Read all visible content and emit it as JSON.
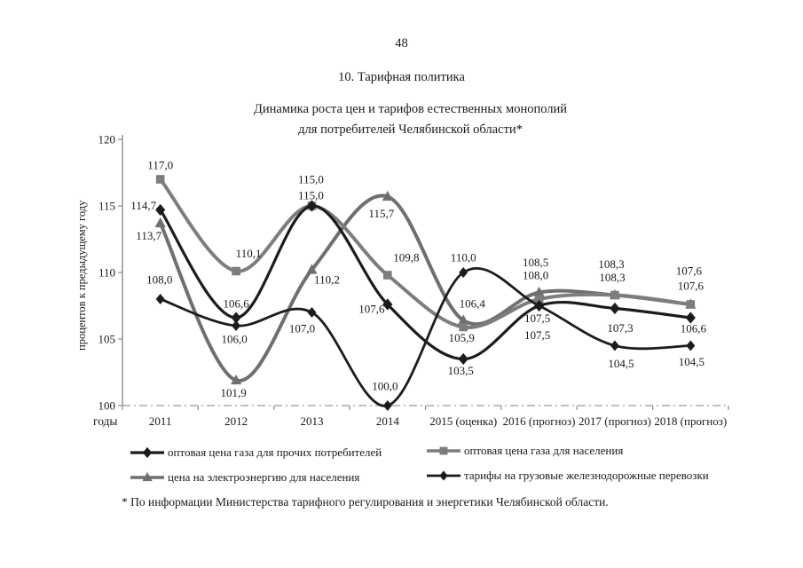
{
  "page": {
    "number": "48",
    "section_heading": "10. Тарифная политика",
    "footnote": "* По информации Министерства тарифного регулирования и энергетики Челябинской области."
  },
  "chart_data": {
    "type": "line",
    "title_lines": [
      "Динамика роста цен и тарифов естественных монополий",
      "для потребителей Челябинской области*"
    ],
    "ylabel": "процентов к предыдущему году",
    "xlabel": "годы",
    "ylim": [
      100,
      120
    ],
    "yticks": [
      "100",
      "105",
      "110",
      "115",
      "120"
    ],
    "grid": "off",
    "legend_position": "bottom-two-columns",
    "categories": [
      "2011",
      "2012",
      "2013",
      "2014",
      "2015 (оценка)",
      "2016 (прогноз)",
      "2017 (прогноз)",
      "2018 (прогноз)"
    ],
    "draw_order": [
      2,
      1,
      0,
      3
    ],
    "series": [
      {
        "name": "оптовая цена газа для прочих потребителей",
        "marker": "diamond",
        "color": "#1c1c1c",
        "line_width": 3.2,
        "marker_size": 5.6,
        "values": [
          114.7,
          106.6,
          115.0,
          107.6,
          103.5,
          107.5,
          107.3,
          106.6
        ],
        "point_labels": [
          "114,7",
          "106,6",
          "115,0",
          "107,6",
          "103,5",
          "107,5",
          "107,3",
          "106,6"
        ],
        "label_offsets": [
          [
            -19,
            -5
          ],
          [
            0,
            -16
          ],
          [
            -1,
            -12
          ],
          [
            -18,
            5
          ],
          [
            -3,
            13
          ],
          [
            -2,
            14
          ],
          [
            6,
            22
          ],
          [
            3,
            12
          ]
        ]
      },
      {
        "name": "оптовая цена газа для населения",
        "marker": "square",
        "color": "#7d7d7d",
        "line_width": 4,
        "marker_size": 4.8,
        "values": [
          117.0,
          110.1,
          115.0,
          109.8,
          105.9,
          108.0,
          108.3,
          107.6
        ],
        "point_labels": [
          "117,0",
          "110,1",
          "115,0",
          "109,8",
          "105,9",
          "108,0",
          "108,3",
          "107,6"
        ],
        "label_offsets": [
          [
            0,
            -16
          ],
          [
            14,
            -20
          ],
          [
            -1,
            -30
          ],
          [
            21,
            -20
          ],
          [
            -2,
            12
          ],
          [
            -4,
            -27
          ],
          [
            -3,
            -20
          ],
          [
            0,
            -21
          ]
        ]
      },
      {
        "name": "цена на электроэнергию для населения",
        "marker": "triangle",
        "color": "#6f6f6f",
        "line_width": 4,
        "marker_size": 5.6,
        "values": [
          113.7,
          101.9,
          110.2,
          115.7,
          106.4,
          108.5,
          108.3,
          107.6
        ],
        "point_labels": [
          "113,7",
          "101,9",
          "110,2",
          "115,7",
          "106,4",
          "108,5",
          "108,3",
          "107,6"
        ],
        "label_offsets": [
          [
            -13,
            14
          ],
          [
            -3,
            14
          ],
          [
            17,
            11
          ],
          [
            -7,
            19
          ],
          [
            10,
            -19
          ],
          [
            -4,
            -34
          ],
          [
            -4,
            -35
          ],
          [
            -2,
            -38
          ]
        ]
      },
      {
        "name": "тарифы на грузовые железнодорожные перевозки",
        "marker": "diamond",
        "color": "#1c1c1c",
        "line_width": 2.8,
        "marker_size": 5,
        "values": [
          108.0,
          106.0,
          107.0,
          100.0,
          110.0,
          107.5,
          104.5,
          104.5
        ],
        "point_labels": [
          "108,0",
          "106,0",
          "107,0",
          "100,0",
          "110,0",
          "107,5",
          "104,5",
          "104,5"
        ],
        "label_offsets": [
          [
            -1,
            -22
          ],
          [
            -2,
            15
          ],
          [
            -11,
            18
          ],
          [
            -3,
            -22
          ],
          [
            0,
            -17
          ],
          [
            -2,
            33
          ],
          [
            7,
            20
          ],
          [
            1,
            18
          ]
        ]
      }
    ]
  }
}
